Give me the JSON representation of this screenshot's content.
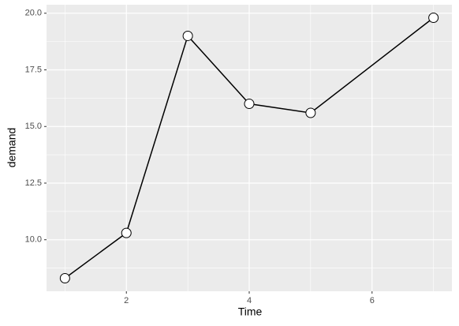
{
  "chart_data": {
    "type": "line",
    "x_label": "Time",
    "y_label": "demand",
    "x": [
      1,
      2,
      3,
      4,
      5,
      7
    ],
    "series": [
      {
        "values": [
          8.3,
          10.3,
          19.0,
          16.0,
          15.6,
          19.8
        ],
        "color": "#000000"
      }
    ],
    "xlim": [
      0.7,
      7.3
    ],
    "xticks": [
      2,
      4,
      6
    ],
    "ylim": [
      7.725,
      20.375
    ],
    "yticks": [
      {
        "value": 10,
        "label": "10.0"
      },
      12.5,
      {
        "value": 15,
        "label": "15.0"
      },
      17.5,
      {
        "value": 20,
        "label": "20.0"
      }
    ],
    "grid": true
  }
}
